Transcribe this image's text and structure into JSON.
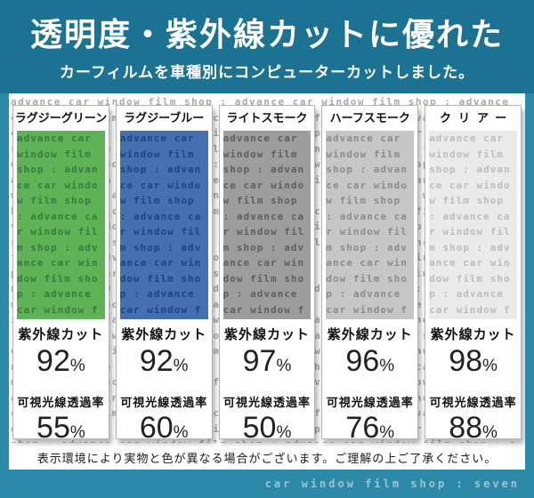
{
  "banner": {
    "title": "透明度・紫外線カットに優れた",
    "subtitle": "カーフィルムを車種別にコンピューターカットしました。"
  },
  "watermark_phrase": "advance car window film shop : ",
  "labels": {
    "uv": "紫外線カット",
    "vlt": "可視光線透過率"
  },
  "unit": "%",
  "films": [
    {
      "name": "ラグジーグリーン",
      "uv_percent": "92",
      "vlt_percent": "55",
      "swatch_color": "#5db356",
      "text_color": "#3a7a3e"
    },
    {
      "name": "ラグジーブルー",
      "uv_percent": "92",
      "vlt_percent": "60",
      "swatch_color": "#4470b2",
      "text_color": "#1f4382"
    },
    {
      "name": "ライトスモーク",
      "uv_percent": "97",
      "vlt_percent": "50",
      "swatch_color": "#9d9d9d",
      "text_color": "#5e5e5e"
    },
    {
      "name": "ハーフスモーク",
      "uv_percent": "96",
      "vlt_percent": "76",
      "swatch_color": "#c6c6c6",
      "text_color": "#8b8b8b"
    },
    {
      "name": "クリアー",
      "uv_percent": "98",
      "vlt_percent": "88",
      "swatch_color": "#eaeaea",
      "text_color": "#bcbcbc"
    }
  ],
  "disclaimer": "表示環境により実物と色が異なる場合がございます。ご理解の上ご了承ください。",
  "footer": {
    "shop_name": "car window film shop : seven"
  },
  "colors": {
    "banner_bg": "#1b7292",
    "frame_bg": "#2d89a8",
    "watermark_text": "#a9a9a9",
    "card_border": "#b2b2b2"
  }
}
